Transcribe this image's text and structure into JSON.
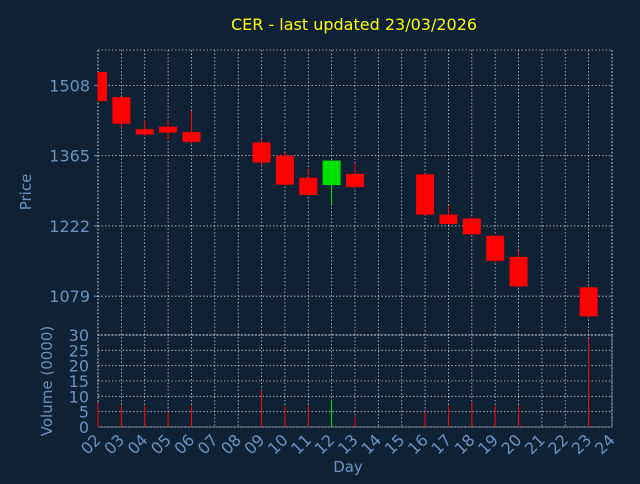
{
  "chart_data": {
    "type": "candlestick",
    "title": "CER - last updated 23/03/2026",
    "price_panel": {
      "ylabel": "Price",
      "yticks": [
        1079,
        1222,
        1365,
        1508
      ],
      "ylim": [
        1000,
        1580
      ],
      "grid": true
    },
    "volume_panel": {
      "ylabel": "Volume (0000)",
      "yticks": [
        0,
        5,
        10,
        15,
        20,
        25,
        30
      ],
      "ylim": [
        0,
        30
      ],
      "grid": true
    },
    "xlabel": "Day",
    "xlim": [
      2,
      24
    ],
    "xticks": [
      "02",
      "03",
      "04",
      "05",
      "06",
      "07",
      "08",
      "09",
      "10",
      "11",
      "12",
      "13",
      "14",
      "15",
      "16",
      "17",
      "18",
      "19",
      "20",
      "21",
      "22",
      "23",
      "24"
    ],
    "colors": {
      "up": "#00e000",
      "down": "#ff0000",
      "title": "#ffff00",
      "axis_text": "#6b93bf",
      "grid": "#ffffff",
      "background": "#0f2134"
    },
    "candles": [
      {
        "day": 2,
        "open": 1535,
        "close": 1476,
        "high": 1535,
        "low": 1476,
        "volume": 8
      },
      {
        "day": 3,
        "open": 1484,
        "close": 1430,
        "high": 1484,
        "low": 1422,
        "volume": 7
      },
      {
        "day": 4,
        "open": 1419,
        "close": 1408,
        "high": 1438,
        "low": 1406,
        "volume": 7
      },
      {
        "day": 5,
        "open": 1424,
        "close": 1412,
        "high": 1437,
        "low": 1398,
        "volume": 5
      },
      {
        "day": 6,
        "open": 1413,
        "close": 1393,
        "high": 1456,
        "low": 1390,
        "volume": 7
      },
      {
        "day": 9,
        "open": 1392,
        "close": 1351,
        "high": 1399,
        "low": 1346,
        "volume": 12
      },
      {
        "day": 10,
        "open": 1365,
        "close": 1306,
        "high": 1371,
        "low": 1304,
        "volume": 7
      },
      {
        "day": 11,
        "open": 1320,
        "close": 1285,
        "high": 1338,
        "low": 1283,
        "volume": 7
      },
      {
        "day": 12,
        "open": 1305,
        "close": 1355,
        "high": 1355,
        "low": 1266,
        "volume": 9
      },
      {
        "day": 13,
        "open": 1328,
        "close": 1301,
        "high": 1350,
        "low": 1299,
        "volume": 3
      },
      {
        "day": 16,
        "open": 1327,
        "close": 1245,
        "high": 1330,
        "low": 1243,
        "volume": 5
      },
      {
        "day": 17,
        "open": 1245,
        "close": 1226,
        "high": 1264,
        "low": 1224,
        "volume": 7
      },
      {
        "day": 18,
        "open": 1237,
        "close": 1205,
        "high": 1240,
        "low": 1203,
        "volume": 8
      },
      {
        "day": 19,
        "open": 1202,
        "close": 1151,
        "high": 1202,
        "low": 1149,
        "volume": 7
      },
      {
        "day": 20,
        "open": 1159,
        "close": 1099,
        "high": 1171,
        "low": 1097,
        "volume": 7
      },
      {
        "day": 23,
        "open": 1097,
        "close": 1038,
        "high": 1097,
        "low": 1036,
        "volume": 29
      }
    ]
  }
}
